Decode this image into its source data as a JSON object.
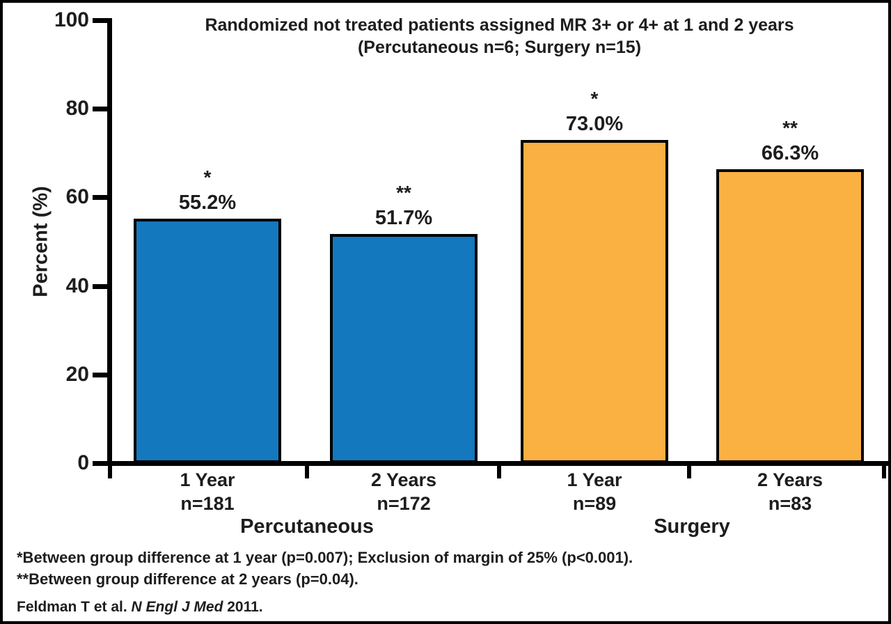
{
  "title": {
    "line1": "Randomized not treated patients assigned MR 3+ or 4+ at 1 and 2 years",
    "line2": "(Percutaneous n=6; Surgery n=15)"
  },
  "chart_data": {
    "type": "bar",
    "title": "Randomized not treated patients assigned MR 3+ or 4+ at 1 and 2 years (Percutaneous n=6; Surgery n=15)",
    "xlabel": "",
    "ylabel": "Percent (%)",
    "ylim": [
      0,
      100
    ],
    "yticks": [
      0,
      20,
      40,
      60,
      80,
      100
    ],
    "grid": false,
    "legend": false,
    "colors": {
      "percutaneous": "#1378BE",
      "surgery": "#FBB042",
      "bar_border": "#000000",
      "text": "#1d1d1f"
    },
    "groups": [
      {
        "label": "Percutaneous"
      },
      {
        "label": "Surgery"
      }
    ],
    "bars": [
      {
        "group": "Percutaneous",
        "category": "1 Year",
        "n_label": "n=181",
        "value": 55.2,
        "value_label": "55.2%",
        "significance": "*",
        "color": "#1378BE"
      },
      {
        "group": "Percutaneous",
        "category": "2 Years",
        "n_label": "n=172",
        "value": 51.7,
        "value_label": "51.7%",
        "significance": "**",
        "color": "#1378BE"
      },
      {
        "group": "Surgery",
        "category": "1 Year",
        "n_label": "n=89",
        "value": 73.0,
        "value_label": "73.0%",
        "significance": "*",
        "color": "#FBB042"
      },
      {
        "group": "Surgery",
        "category": "2 Years",
        "n_label": "n=83",
        "value": 66.3,
        "value_label": "66.3%",
        "significance": "**",
        "color": "#FBB042"
      }
    ]
  },
  "footnotes": {
    "line1": "*Between group difference at 1 year (p=0.007); Exclusion of margin of 25% (p<0.001).",
    "line2": "**Between group difference at 2 years (p=0.04)."
  },
  "citation": {
    "prefix": "Feldman T et al. ",
    "journal": "N Engl J Med",
    "suffix": " 2011."
  }
}
